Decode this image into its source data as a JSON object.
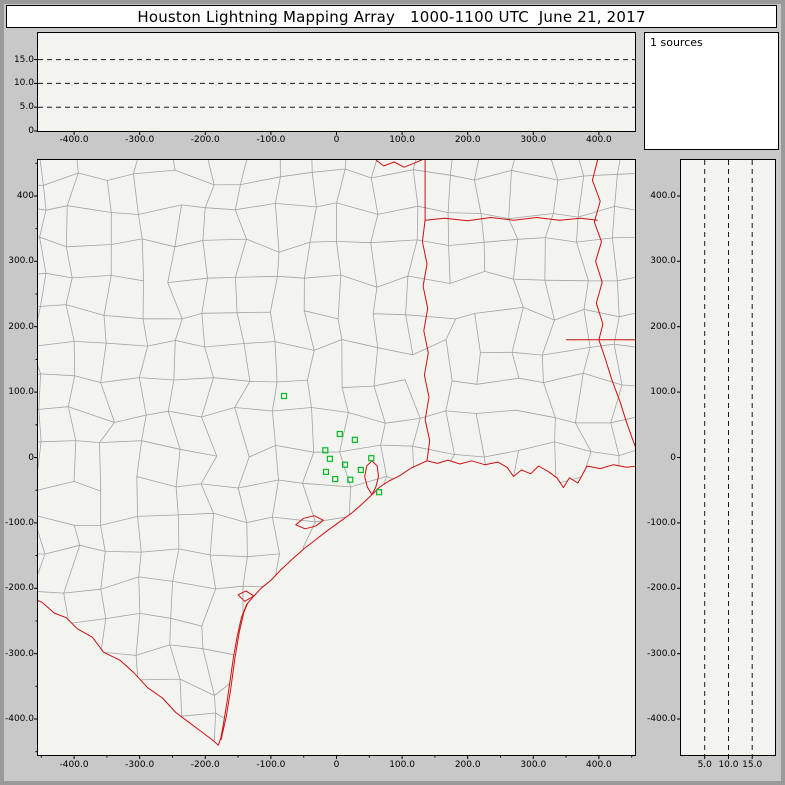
{
  "title": "Houston Lightning Mapping Array   1000-1100 UTC  June 21, 2017",
  "sources_panel": {
    "label": "1 sources"
  },
  "colors": {
    "window_bg": "#c8c8c8",
    "window_border": "#9a9a9a",
    "panel_bg": "#f3f3f0",
    "white_bg": "#ffffff",
    "frame": "#000000",
    "county": "#a3a3a3",
    "border_red": "#cc1111",
    "station_green": "#00bb22",
    "dash": "#1a1a1a"
  },
  "axes": {
    "km_x_ticks": [
      {
        "v": -400,
        "label": "-400.0"
      },
      {
        "v": -300,
        "label": "-300.0"
      },
      {
        "v": -200,
        "label": "-200.0"
      },
      {
        "v": -100,
        "label": "-100.0"
      },
      {
        "v": 0,
        "label": "0"
      },
      {
        "v": 100,
        "label": "100.0"
      },
      {
        "v": 200,
        "label": "200.0"
      },
      {
        "v": 300,
        "label": "300.0"
      },
      {
        "v": 400,
        "label": "400.0"
      }
    ],
    "map_minor_ticks": [
      -450,
      -350,
      -250,
      -150,
      -50,
      50,
      150,
      250,
      350,
      450
    ],
    "map_y_ticks": [
      {
        "v": 400,
        "label": "400"
      },
      {
        "v": 300,
        "label": "300.0"
      },
      {
        "v": 200,
        "label": "200.0"
      },
      {
        "v": 100,
        "label": "100.0"
      },
      {
        "v": 0,
        "label": "0"
      },
      {
        "v": -100,
        "label": "-100.0"
      },
      {
        "v": -200,
        "label": "-200.0"
      },
      {
        "v": -300,
        "label": "-300.0"
      },
      {
        "v": -400,
        "label": "-400.0"
      }
    ],
    "right_y_ticks": [
      {
        "v": 400,
        "label": "400.0"
      },
      {
        "v": 300,
        "label": "300.0"
      },
      {
        "v": 200,
        "label": "200.0"
      },
      {
        "v": 100,
        "label": "100.0"
      },
      {
        "v": 0,
        "label": "0"
      },
      {
        "v": -100,
        "label": "-100.0"
      },
      {
        "v": -200,
        "label": "-200.0"
      },
      {
        "v": -300,
        "label": "-300.0"
      },
      {
        "v": -400,
        "label": "-400.0"
      }
    ],
    "alt_y_ticks": [
      {
        "v": 15,
        "label": "15.0"
      },
      {
        "v": 10,
        "label": "10.0"
      },
      {
        "v": 5,
        "label": "5.0"
      },
      {
        "v": 0,
        "label": "0"
      }
    ],
    "alt_x_ticks": [
      {
        "v": 5,
        "label": "5.0"
      },
      {
        "v": 10,
        "label": "10.0"
      },
      {
        "v": 15,
        "label": "15.0"
      }
    ]
  },
  "chart_data": {
    "type": "scatter",
    "title": "Houston Lightning Mapping Array 1000-1100 UTC June 21, 2017",
    "source_count_label": "1 sources",
    "source_count": 1,
    "panels": [
      {
        "name": "altitude-vs-eastwest",
        "xlim": [
          -455,
          455
        ],
        "ylim": [
          0,
          20.6
        ],
        "gridlines_km": [
          5,
          10,
          15
        ],
        "points": []
      },
      {
        "name": "source-histogram",
        "text": "1 sources",
        "points": []
      },
      {
        "name": "plan-view-map",
        "xlim": [
          -455,
          455
        ],
        "ylim": [
          -455,
          455
        ],
        "points": []
      },
      {
        "name": "altitude-vs-northsouth",
        "xlim": [
          0,
          19.8
        ],
        "ylim": [
          -455,
          455
        ],
        "gridlines_km": [
          5,
          10,
          15
        ],
        "points": []
      }
    ],
    "lma_stations_km": [
      [
        -80,
        94
      ],
      [
        -17,
        11
      ],
      [
        5,
        36
      ],
      [
        28,
        27
      ],
      [
        -10,
        -2
      ],
      [
        -16,
        -22
      ],
      [
        13,
        -11
      ],
      [
        21,
        -34
      ],
      [
        -2,
        -33
      ],
      [
        37,
        -19
      ],
      [
        53,
        -1
      ],
      [
        65,
        -53
      ]
    ],
    "map_features": {
      "coastline": [
        [
          -470,
          -212
        ],
        [
          -448,
          -222
        ],
        [
          -430,
          -238
        ],
        [
          -412,
          -245
        ],
        [
          -395,
          -262
        ],
        [
          -372,
          -275
        ],
        [
          -355,
          -298
        ],
        [
          -330,
          -310
        ],
        [
          -308,
          -330
        ],
        [
          -288,
          -352
        ],
        [
          -265,
          -368
        ],
        [
          -245,
          -390
        ],
        [
          -225,
          -405
        ],
        [
          -205,
          -420
        ],
        [
          -188,
          -433
        ],
        [
          -180,
          -440
        ],
        [
          -176,
          -428
        ],
        [
          -172,
          -405
        ],
        [
          -167,
          -375
        ],
        [
          -162,
          -340
        ],
        [
          -157,
          -305
        ],
        [
          -151,
          -272
        ],
        [
          -145,
          -245
        ],
        [
          -137,
          -225
        ],
        [
          -126,
          -212
        ],
        [
          -115,
          -200
        ],
        [
          -100,
          -188
        ],
        [
          -85,
          -172
        ],
        [
          -68,
          -156
        ],
        [
          -50,
          -140
        ],
        [
          -32,
          -126
        ],
        [
          -14,
          -112
        ],
        [
          4,
          -99
        ],
        [
          22,
          -86
        ],
        [
          38,
          -72
        ],
        [
          54,
          -57
        ],
        [
          66,
          -45
        ],
        [
          80,
          -36
        ],
        [
          96,
          -28
        ],
        [
          114,
          -16
        ],
        [
          138,
          -5
        ],
        [
          154,
          -9
        ],
        [
          170,
          -4
        ],
        [
          188,
          -10
        ],
        [
          206,
          -5
        ],
        [
          226,
          -11
        ],
        [
          246,
          -7
        ],
        [
          260,
          -15
        ],
        [
          270,
          -29
        ],
        [
          282,
          -19
        ],
        [
          296,
          -25
        ],
        [
          308,
          -13
        ],
        [
          322,
          -21
        ],
        [
          336,
          -31
        ],
        [
          346,
          -46
        ],
        [
          355,
          -31
        ],
        [
          368,
          -39
        ],
        [
          382,
          -13
        ],
        [
          402,
          -17
        ],
        [
          422,
          -11
        ],
        [
          442,
          -15
        ],
        [
          470,
          -12
        ]
      ],
      "barrier_island": [
        [
          -176,
          -432
        ],
        [
          -168,
          -396
        ],
        [
          -161,
          -352
        ],
        [
          -155,
          -308
        ],
        [
          -148,
          -266
        ],
        [
          -141,
          -236
        ],
        [
          -135,
          -222
        ]
      ],
      "bays": [
        [
          [
            54,
            -57
          ],
          [
            47,
            -45
          ],
          [
            43,
            -29
          ],
          [
            46,
            -13
          ],
          [
            54,
            -5
          ],
          [
            62,
            -13
          ],
          [
            64,
            -29
          ],
          [
            60,
            -45
          ],
          [
            54,
            -57
          ]
        ],
        [
          [
            -20,
            -96
          ],
          [
            -34,
            -89
          ],
          [
            -50,
            -93
          ],
          [
            -62,
            -103
          ],
          [
            -48,
            -109
          ],
          [
            -32,
            -105
          ],
          [
            -20,
            -96
          ]
        ],
        [
          [
            -126,
            -212
          ],
          [
            -138,
            -204
          ],
          [
            -150,
            -210
          ],
          [
            -140,
            -220
          ],
          [
            -126,
            -212
          ]
        ]
      ],
      "state_borders": [
        [
          [
            135,
            455
          ],
          [
            135,
            363
          ]
        ],
        [
          [
            135,
            363
          ],
          [
            165,
            366
          ],
          [
            200,
            362
          ],
          [
            235,
            367
          ],
          [
            270,
            363
          ],
          [
            305,
            367
          ],
          [
            340,
            363
          ],
          [
            372,
            366
          ],
          [
            398,
            363
          ]
        ],
        [
          [
            135,
            363
          ],
          [
            131,
            330
          ],
          [
            138,
            296
          ],
          [
            132,
            262
          ],
          [
            139,
            228
          ],
          [
            133,
            194
          ],
          [
            140,
            160
          ],
          [
            134,
            126
          ],
          [
            141,
            92
          ],
          [
            135,
            58
          ],
          [
            142,
            26
          ],
          [
            138,
            -5
          ]
        ],
        [
          [
            60,
            455
          ],
          [
            72,
            446
          ],
          [
            88,
            452
          ],
          [
            103,
            444
          ],
          [
            118,
            450
          ],
          [
            130,
            455
          ]
        ],
        [
          [
            350,
            180
          ],
          [
            470,
            180
          ]
        ]
      ],
      "rivers": [
        [
          [
            398,
            455
          ],
          [
            390,
            424
          ],
          [
            402,
            392
          ],
          [
            393,
            360
          ],
          [
            404,
            330
          ],
          [
            395,
            300
          ],
          [
            405,
            268
          ],
          [
            396,
            236
          ],
          [
            406,
            204
          ],
          [
            400,
            180
          ],
          [
            410,
            150
          ],
          [
            420,
            118
          ],
          [
            432,
            86
          ],
          [
            442,
            54
          ],
          [
            452,
            26
          ],
          [
            458,
            10
          ]
        ]
      ],
      "counties": {
        "seed": 7,
        "cell_km": 52,
        "jitter_km": 13,
        "skip_prob": 0.06
      }
    }
  }
}
